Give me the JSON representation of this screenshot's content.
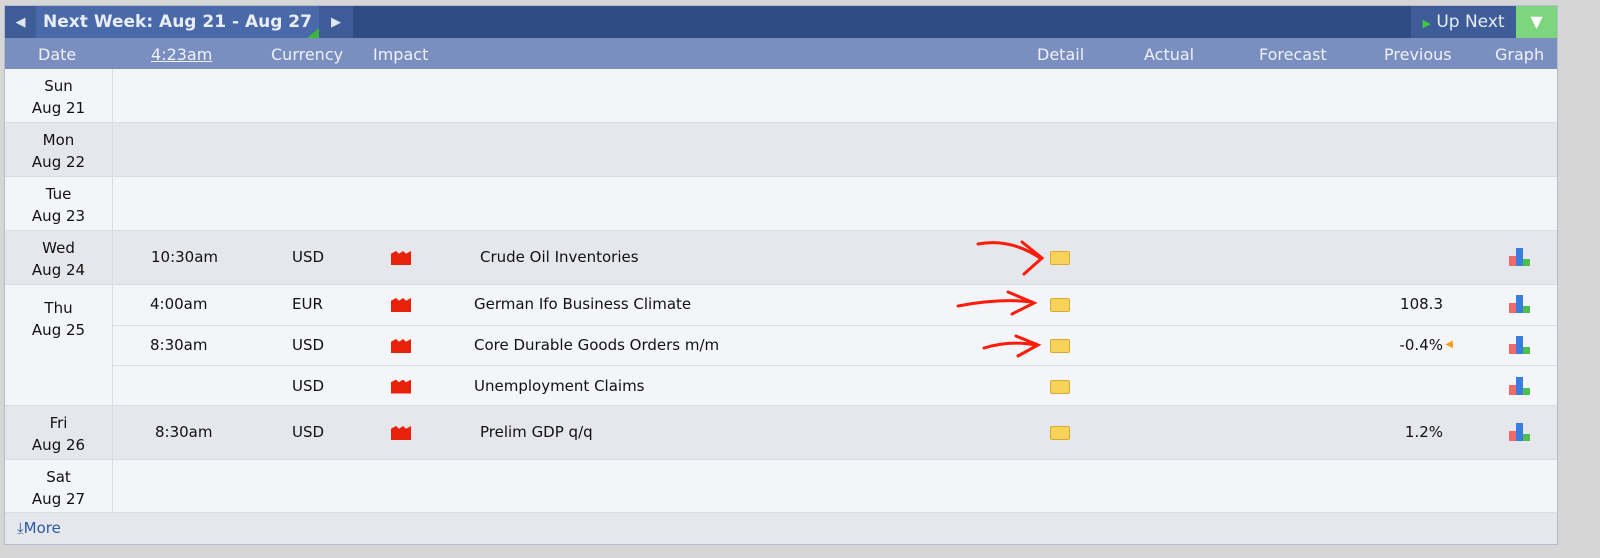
{
  "header": {
    "title": "Next Week: Aug 21 - Aug 27",
    "up_next": "Up Next",
    "prev_icon": "triangle-left",
    "next_icon": "triangle-right",
    "filter_icon": "funnel"
  },
  "columns": {
    "date": "Date",
    "time": "4:23am",
    "currency": "Currency",
    "impact": "Impact",
    "detail": "Detail",
    "actual": "Actual",
    "forecast": "Forecast",
    "previous": "Previous",
    "graph": "Graph"
  },
  "days": [
    {
      "day": "Sun",
      "date": "Aug 21"
    },
    {
      "day": "Mon",
      "date": "Aug 22"
    },
    {
      "day": "Tue",
      "date": "Aug 23"
    },
    {
      "day": "Wed",
      "date": "Aug 24"
    },
    {
      "day": "Thu",
      "date": "Aug 25"
    },
    {
      "day": "Fri",
      "date": "Aug 26"
    },
    {
      "day": "Sat",
      "date": "Aug 27"
    }
  ],
  "events": [
    {
      "time": "10:30am",
      "currency": "USD",
      "event": "Crude Oil Inventories",
      "previous": "",
      "impact": "high"
    },
    {
      "time": "4:00am",
      "currency": "EUR",
      "event": "German Ifo Business Climate",
      "previous": "108.3",
      "impact": "high"
    },
    {
      "time": "8:30am",
      "currency": "USD",
      "event": "Core Durable Goods Orders m/m",
      "previous": "-0.4%",
      "impact": "high",
      "previous_revised": true
    },
    {
      "time": "",
      "currency": "USD",
      "event": "Unemployment Claims",
      "previous": "",
      "impact": "high"
    },
    {
      "time": "8:30am",
      "currency": "USD",
      "event": "Prelim GDP q/q",
      "previous": "1.2%",
      "impact": "high"
    }
  ],
  "footer": {
    "more": "More"
  },
  "colors": {
    "impact_high": "#e8220a",
    "annotation_arrow": "#ff1a0a",
    "header": "#2f4c83",
    "filter": "#7dd57d"
  }
}
